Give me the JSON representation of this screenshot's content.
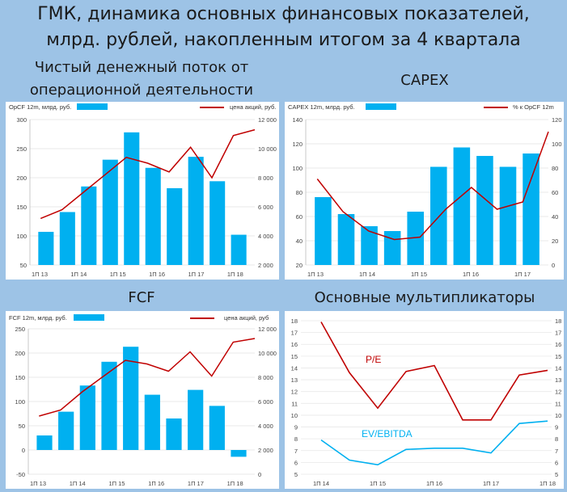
{
  "header": {
    "title_line1": "ГМК, динамика основных финансовых показателей,",
    "title_line2": "млрд. рублей, накопленным итогом за 4 квартала"
  },
  "panels": {
    "opcf_title": "Чистый денежный поток от операционной деятельности",
    "capex_title": "CAPEX",
    "fcf_title": "FCF",
    "mult_title": "Основные мультипликаторы"
  },
  "colors": {
    "bar": "#00b0f0",
    "line": "#c00000",
    "ev_line": "#00b0f0",
    "background": "#9dc3e6"
  },
  "chart_data": [
    {
      "id": "opcf",
      "type": "bar",
      "legend_bar": "OpCF 12m, млрд. руб.",
      "legend_line": "цена акций, руб.",
      "x_tick_labels": [
        "1П 13",
        "1П 14",
        "1П 15",
        "1П 16",
        "1П 17",
        "1П 18"
      ],
      "bars": [
        107,
        141,
        185,
        231,
        278,
        217,
        182,
        236,
        194,
        102
      ],
      "line": [
        5200,
        5800,
        7000,
        8200,
        9400,
        9000,
        8400,
        10100,
        8000,
        10900,
        11300
      ],
      "y_left": {
        "min": 50,
        "max": 300,
        "ticks": [
          50,
          100,
          150,
          200,
          250,
          300
        ]
      },
      "y_right": {
        "min": 2000,
        "max": 12000,
        "ticks": [
          2000,
          4000,
          6000,
          8000,
          10000,
          12000
        ],
        "tick_labels": [
          "2 000",
          "4 000",
          "6 000",
          "8 000",
          "10 000",
          "12 000"
        ]
      }
    },
    {
      "id": "capex",
      "type": "bar",
      "legend_bar": "CAPEX 12m, млрд. руб.",
      "legend_line": "% к OpCF 12m",
      "x_tick_labels": [
        "1П 13",
        "1П 14",
        "1П 15",
        "1П 16",
        "1П 17"
      ],
      "bars": [
        76,
        62,
        52,
        48,
        64,
        101,
        117,
        110,
        101,
        112
      ],
      "line": [
        71,
        44,
        28,
        21,
        23,
        46,
        64,
        46,
        52,
        110
      ],
      "y_left": {
        "min": 20,
        "max": 140,
        "ticks": [
          20,
          40,
          60,
          80,
          100,
          120,
          140
        ]
      },
      "y_right": {
        "min": 0,
        "max": 120,
        "ticks": [
          0,
          20,
          40,
          60,
          80,
          100,
          120
        ]
      }
    },
    {
      "id": "fcf",
      "type": "bar",
      "legend_bar": "FCF 12m, млрд. руб.",
      "legend_line": "цена акций, руб",
      "x_tick_labels": [
        "1П 13",
        "1П 14",
        "1П 15",
        "1П 16",
        "1П 17",
        "1П 18"
      ],
      "bars": [
        30,
        79,
        133,
        182,
        213,
        114,
        65,
        124,
        91,
        -14
      ],
      "line": [
        4800,
        5300,
        6800,
        8100,
        9400,
        9100,
        8500,
        10100,
        8100,
        10900,
        11200
      ],
      "y_left": {
        "min": -50,
        "max": 250,
        "ticks": [
          -50,
          0,
          50,
          100,
          150,
          200,
          250
        ]
      },
      "y_right": {
        "min": 0,
        "max": 12000,
        "ticks": [
          0,
          2000,
          4000,
          6000,
          8000,
          10000,
          12000
        ],
        "tick_labels": [
          "0",
          "2 000",
          "4 000",
          "6 000",
          "8 000",
          "10 000",
          "12 000"
        ]
      }
    },
    {
      "id": "mult",
      "type": "line",
      "x_tick_labels": [
        "1П 14",
        "1П 15",
        "1П 16",
        "1П 17",
        "1П 18"
      ],
      "series": [
        {
          "name": "P/E",
          "values": [
            17.9,
            13.6,
            10.6,
            13.7,
            14.2,
            9.6,
            9.6,
            13.4,
            13.8
          ]
        },
        {
          "name": "EV/EBITDA",
          "values": [
            7.9,
            6.2,
            5.8,
            7.1,
            7.2,
            7.2,
            6.8,
            9.3,
            9.5
          ]
        }
      ],
      "y_left": {
        "min": 5,
        "max": 18,
        "ticks": [
          5,
          6,
          7,
          8,
          9,
          10,
          11,
          12,
          13,
          14,
          15,
          16,
          17,
          18
        ]
      },
      "y_right": {
        "min": 5,
        "max": 18,
        "ticks": [
          5,
          6,
          7,
          8,
          9,
          10,
          11,
          12,
          13,
          14,
          15,
          16,
          17,
          18
        ]
      }
    }
  ]
}
